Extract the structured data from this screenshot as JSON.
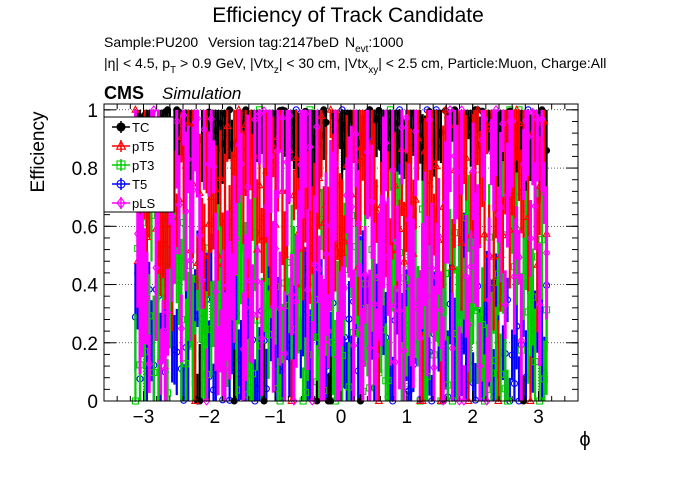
{
  "chart_data": {
    "type": "scatter",
    "title": "Efficiency of Track Candidate",
    "sample_line": {
      "sample": "Sample:PU200",
      "version": "Version tag:2147beD",
      "nevt_prefix": "N",
      "nevt_sub": "evt",
      "nevt_value": ":1000"
    },
    "cuts_line": {
      "eta": "|η| < 4.5, p",
      "pt_sub": "T",
      "pt_rest": " > 0.9 GeV, |Vtx",
      "vz_sub": "z",
      "vz_rest": "| < 30 cm, |Vtx",
      "vxy_sub": "xy",
      "vxy_rest": "| < 2.5 cm, Particle:Muon, Charge:All"
    },
    "cms_label": "CMS",
    "simulation_label": "Simulation",
    "xlabel": "ϕ",
    "ylabel": "Efficiency",
    "xlim": [
      -3.6,
      3.6
    ],
    "ylim": [
      0,
      1.02
    ],
    "x_ticks": [
      -3,
      -2,
      -1,
      0,
      1,
      2,
      3
    ],
    "x_tick_labels": [
      "−3",
      "−2",
      "−1",
      "0",
      "1",
      "2",
      "3"
    ],
    "y_ticks": [
      0,
      0.2,
      0.4,
      0.6,
      0.8,
      1
    ],
    "y_tick_labels": [
      "0",
      "0.2",
      "0.4",
      "0.6",
      "0.8",
      "1"
    ],
    "grid": true,
    "legend_position": "top-left",
    "x_range": [
      -3.14,
      3.14
    ],
    "n_bins": 180,
    "series": [
      {
        "name": "TC",
        "color": "#000000",
        "marker": "filled-circle",
        "center": 0.93,
        "spread": 0.07,
        "error": 0.2
      },
      {
        "name": "pT5",
        "color": "#ff0000",
        "marker": "open-triangle",
        "center": 0.72,
        "spread": 0.26,
        "error": 0.28
      },
      {
        "name": "pT3",
        "color": "#00cc00",
        "marker": "open-square",
        "center": 0.35,
        "spread": 0.33,
        "error": 0.3
      },
      {
        "name": "T5",
        "color": "#0000ff",
        "marker": "open-circle",
        "center": 0.22,
        "spread": 0.22,
        "error": 0.25
      },
      {
        "name": "pLS",
        "color": "#ff00ff",
        "marker": "open-diamond",
        "center": 0.55,
        "spread": 0.45,
        "error": 0.3
      }
    ]
  }
}
